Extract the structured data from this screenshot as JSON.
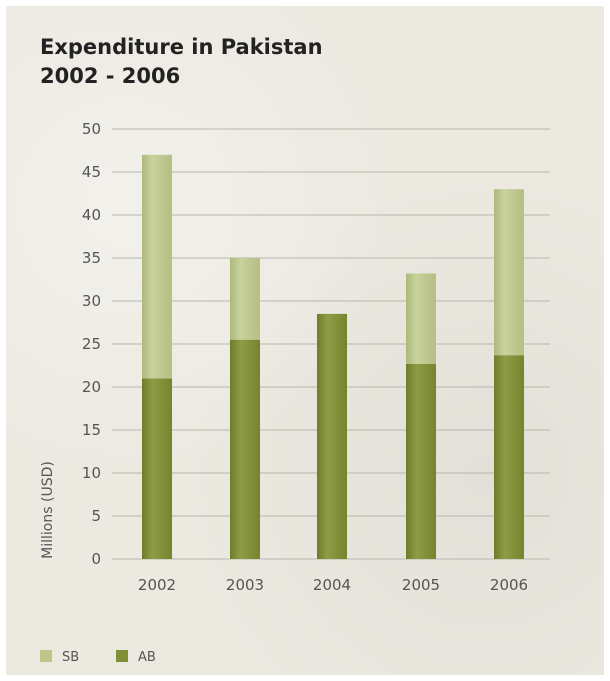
{
  "title_line1": "Expenditure in Pakistan",
  "title_line2": "2002 - 2006",
  "colors": {
    "SB": "#bcc68b",
    "AB": "#818f36",
    "grid": "#b9b6ab"
  },
  "chart_data": {
    "type": "bar",
    "stacked": true,
    "categories": [
      "2002",
      "2003",
      "2004",
      "2005",
      "2006"
    ],
    "series": [
      {
        "name": "AB",
        "values": [
          21,
          25.5,
          28.5,
          22.7,
          23.7
        ]
      },
      {
        "name": "SB",
        "values": [
          26,
          9.5,
          0,
          10.5,
          19.3
        ]
      }
    ],
    "ylabel": "Millions (USD)",
    "ylim": [
      0,
      50
    ],
    "yticks": [
      0,
      5,
      10,
      15,
      20,
      25,
      30,
      35,
      40,
      45,
      50
    ],
    "grid": true,
    "legend": {
      "position": "bottom-left",
      "entries": [
        "SB",
        "AB"
      ]
    }
  }
}
